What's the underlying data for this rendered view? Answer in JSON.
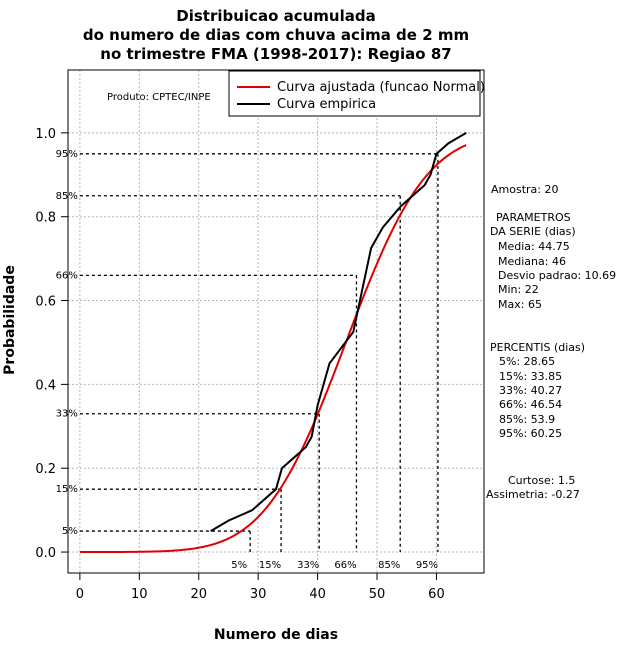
{
  "chart_data": {
    "type": "line",
    "title": [
      "Distribuicao acumulada",
      "do numero de dias com chuva acima de 2 mm",
      "no trimestre FMA (1998-2017): Regiao 87"
    ],
    "xlabel": "Numero de dias",
    "ylabel": "Probabilidade",
    "xlim": [
      -2,
      68
    ],
    "ylim": [
      -0.05,
      1.15
    ],
    "xticks": [
      0,
      10,
      20,
      30,
      40,
      50,
      60
    ],
    "yticks": [
      0.0,
      0.2,
      0.4,
      0.6,
      0.8,
      1.0
    ],
    "xtick_labels": [
      "0",
      "10",
      "20",
      "30",
      "40",
      "50",
      "60"
    ],
    "ytick_labels": [
      "0.0",
      "0.2",
      "0.4",
      "0.6",
      "0.8",
      "1.0"
    ],
    "grid": true,
    "legend_position": "top-right",
    "producer": "Produto: CPTEC/INPE",
    "series": [
      {
        "name": "Curva ajustada (funcao Normal)",
        "color": "#e00000",
        "kind": "normal-cdf",
        "mean": 44.75,
        "sd": 10.69,
        "x_range": [
          0,
          65
        ]
      },
      {
        "name": "Curva empirica",
        "color": "#000000",
        "x": [
          22,
          25,
          29,
          33,
          34,
          38,
          39,
          40,
          42,
          46,
          49,
          51,
          54,
          56,
          58,
          59,
          60,
          62,
          65
        ],
        "y": [
          0.05,
          0.075,
          0.1,
          0.15,
          0.2,
          0.25,
          0.275,
          0.35,
          0.45,
          0.525,
          0.725,
          0.775,
          0.825,
          0.85,
          0.875,
          0.9,
          0.95,
          0.975,
          1.0
        ]
      }
    ],
    "percentile_markers": [
      {
        "label_y": "5%",
        "label_x": "5%",
        "prob": 0.05,
        "x": 28.65
      },
      {
        "label_y": "15%",
        "label_x": "15%",
        "prob": 0.15,
        "x": 33.85
      },
      {
        "label_y": "33%",
        "label_x": "33%",
        "prob": 0.33,
        "x": 40.27
      },
      {
        "label_y": "66%",
        "label_x": "66%",
        "prob": 0.66,
        "x": 46.54
      },
      {
        "label_y": "85%",
        "label_x": "85%",
        "prob": 0.85,
        "x": 53.9
      },
      {
        "label_y": "95%",
        "label_x": "95%",
        "prob": 0.95,
        "x": 60.25
      }
    ],
    "side_panel": {
      "amostra": "Amostra: 20",
      "param_header": [
        "PARAMETROS",
        "DA SERIE (dias)"
      ],
      "params": [
        "Media: 44.75",
        "Mediana: 46",
        "Desvio padrao: 10.69",
        "Min: 22",
        "Max: 65"
      ],
      "percentis_header": "PERCENTIS (dias)",
      "percentis": [
        "5%: 28.65",
        "15%: 33.85",
        "33%: 40.27",
        "66%: 46.54",
        "85%: 53.9",
        "95%: 60.25"
      ],
      "curtose": "Curtose: 1.5",
      "assimetria": "Assimetria: -0.27"
    }
  }
}
